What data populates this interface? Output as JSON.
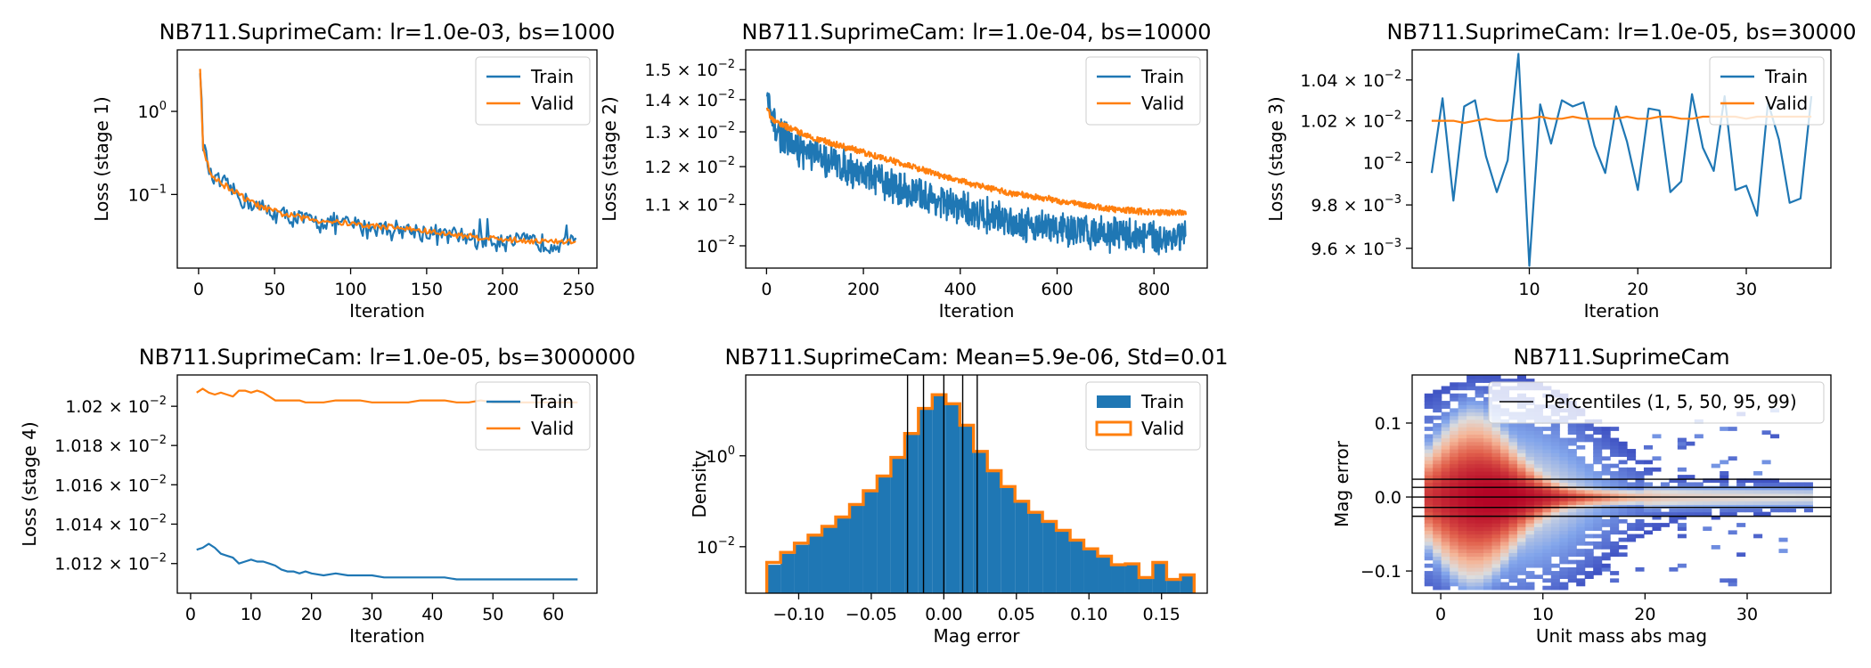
{
  "colors": {
    "train": "#1f77b4",
    "valid": "#ff7f0e",
    "percentile": "#000000"
  },
  "chart_data": [
    {
      "type": "line",
      "title": "NB711.SuprimeCam: lr=1.0e-03, bs=1000",
      "xlabel": "Iteration",
      "ylabel": "Loss (stage 1)",
      "yscale": "log",
      "xlim": [
        -14,
        262
      ],
      "ylim": [
        0.013,
        5.5
      ],
      "xticks": [
        0,
        50,
        100,
        150,
        200,
        250
      ],
      "yticks": [
        {
          "v": 1,
          "label": "10",
          "exp": "0"
        },
        {
          "v": 0.1,
          "label": "10",
          "exp": "−1"
        }
      ],
      "legend": [
        "Train",
        "Valid"
      ],
      "legend_position": "top-right",
      "series": [
        {
          "name": "Train",
          "x": [
            1,
            2,
            3,
            5,
            8,
            10,
            14,
            20,
            30,
            40,
            50,
            60,
            75,
            90,
            100,
            110,
            125,
            140,
            150,
            160,
            175,
            190,
            200,
            210,
            220,
            230,
            240,
            248
          ],
          "y": [
            3.8,
            1.2,
            0.42,
            0.27,
            0.17,
            0.15,
            0.14,
            0.12,
            0.086,
            0.07,
            0.06,
            0.054,
            0.048,
            0.046,
            0.044,
            0.041,
            0.04,
            0.037,
            0.035,
            0.033,
            0.031,
            0.029,
            0.028,
            0.027,
            0.027,
            0.026,
            0.026,
            0.025
          ],
          "noise": 0.32,
          "n": 248
        },
        {
          "name": "Valid",
          "x": [
            1,
            2,
            3,
            5,
            8,
            10,
            14,
            20,
            30,
            40,
            50,
            60,
            75,
            90,
            100,
            110,
            125,
            140,
            150,
            160,
            175,
            190,
            200,
            210,
            220,
            230,
            240,
            248
          ],
          "y": [
            3.3,
            1.1,
            0.4,
            0.26,
            0.18,
            0.16,
            0.14,
            0.12,
            0.09,
            0.072,
            0.062,
            0.056,
            0.05,
            0.047,
            0.045,
            0.042,
            0.041,
            0.038,
            0.036,
            0.034,
            0.032,
            0.03,
            0.029,
            0.028,
            0.028,
            0.027,
            0.027,
            0.027
          ],
          "noise": 0.1,
          "n": 248
        }
      ]
    },
    {
      "type": "line",
      "title": "NB711.SuprimeCam: lr=1.0e-04, bs=10000",
      "xlabel": "Iteration",
      "ylabel": "Loss (stage 2)",
      "yscale": "log",
      "xlim": [
        -43,
        910
      ],
      "ylim": [
        0.0095,
        0.0157
      ],
      "xticks": [
        0,
        200,
        400,
        600,
        800
      ],
      "yticks": [
        {
          "v": 0.015,
          "label": "1.5 × 10",
          "exp": "−2"
        },
        {
          "v": 0.014,
          "label": "1.4 × 10",
          "exp": "−2"
        },
        {
          "v": 0.013,
          "label": "1.3 × 10",
          "exp": "−2"
        },
        {
          "v": 0.012,
          "label": "1.2 × 10",
          "exp": "−2"
        },
        {
          "v": 0.011,
          "label": "1.1 × 10",
          "exp": "−2"
        },
        {
          "v": 0.01,
          "label": "10",
          "exp": "−2"
        }
      ],
      "legend": [
        "Train",
        "Valid"
      ],
      "legend_position": "top-right",
      "series": [
        {
          "name": "Train",
          "x": [
            1,
            10,
            20,
            50,
            100,
            200,
            300,
            400,
            500,
            600,
            700,
            800,
            866
          ],
          "y": [
            0.0141,
            0.0133,
            0.0131,
            0.0126,
            0.0123,
            0.0118,
            0.0113,
            0.0109,
            0.0106,
            0.0104,
            0.0103,
            0.0102,
            0.0102
          ],
          "noise": 0.045,
          "n": 866
        },
        {
          "name": "Valid",
          "x": [
            1,
            10,
            20,
            50,
            100,
            200,
            300,
            400,
            500,
            600,
            700,
            800,
            866
          ],
          "y": [
            0.0137,
            0.0134,
            0.0133,
            0.0131,
            0.0128,
            0.0124,
            0.012,
            0.0116,
            0.0113,
            0.0111,
            0.0109,
            0.0108,
            0.0108
          ],
          "noise": 0.008,
          "n": 866
        }
      ]
    },
    {
      "type": "line",
      "title": "NB711.SuprimeCam: lr=1.0e-05, bs=30000",
      "xlabel": "Iteration",
      "ylabel": "Loss (stage 3)",
      "yscale": "log",
      "xlim": [
        -0.8,
        37.8
      ],
      "ylim": [
        0.00951,
        0.01055
      ],
      "xticks": [
        10,
        20,
        30
      ],
      "yticks": [
        {
          "v": 0.0104,
          "label": "1.04 × 10",
          "exp": "−2"
        },
        {
          "v": 0.0102,
          "label": "1.02 × 10",
          "exp": "−2"
        },
        {
          "v": 0.01,
          "label": "10",
          "exp": "−2"
        },
        {
          "v": 0.0098,
          "label": "9.8 × 10",
          "exp": "−3"
        },
        {
          "v": 0.0096,
          "label": "9.6 × 10",
          "exp": "−3"
        }
      ],
      "legend": [
        "Train",
        "Valid"
      ],
      "legend_position": "top-right",
      "series": [
        {
          "name": "Train",
          "x": [
            1,
            2,
            3,
            4,
            5,
            6,
            7,
            8,
            9,
            10,
            11,
            12,
            13,
            14,
            15,
            16,
            17,
            18,
            19,
            20,
            21,
            22,
            23,
            24,
            25,
            26,
            27,
            28,
            29,
            30,
            31,
            32,
            33,
            34,
            35,
            36
          ],
          "y": [
            0.00995,
            0.01031,
            0.00982,
            0.01027,
            0.0103,
            0.01003,
            0.00986,
            0.01001,
            0.01053,
            0.00952,
            0.01028,
            0.01009,
            0.0103,
            0.01027,
            0.01029,
            0.01008,
            0.00995,
            0.01027,
            0.0101,
            0.00987,
            0.01026,
            0.01025,
            0.00986,
            0.00991,
            0.01033,
            0.01007,
            0.00996,
            0.01032,
            0.00987,
            0.00989,
            0.00975,
            0.01029,
            0.01011,
            0.00981,
            0.00983,
            0.01032
          ]
        },
        {
          "name": "Valid",
          "x": [
            1,
            2,
            3,
            4,
            5,
            6,
            7,
            8,
            9,
            10,
            11,
            12,
            13,
            14,
            15,
            16,
            17,
            18,
            19,
            20,
            21,
            22,
            23,
            24,
            25,
            26,
            27,
            28,
            29,
            30,
            31,
            32,
            33,
            34,
            35,
            36
          ],
          "y": [
            0.0102,
            0.0102,
            0.0102,
            0.01019,
            0.0102,
            0.01021,
            0.0102,
            0.0102,
            0.01021,
            0.01021,
            0.01022,
            0.01021,
            0.01021,
            0.01022,
            0.01021,
            0.01021,
            0.01021,
            0.01021,
            0.01022,
            0.01021,
            0.01021,
            0.01022,
            0.01022,
            0.01021,
            0.01021,
            0.01022,
            0.01022,
            0.01022,
            0.01022,
            0.01021,
            0.01022,
            0.01022,
            0.01022,
            0.01022,
            0.01022,
            0.01022
          ]
        }
      ]
    },
    {
      "type": "line",
      "title": "NB711.SuprimeCam: lr=1.0e-05, bs=3000000",
      "xlabel": "Iteration",
      "ylabel": "Loss (stage 4)",
      "yscale": "log",
      "xlim": [
        -2.2,
        67.2
      ],
      "ylim": [
        0.010105,
        0.010216
      ],
      "xticks": [
        0,
        10,
        20,
        30,
        40,
        50,
        60
      ],
      "yticks": [
        {
          "v": 0.0102,
          "label": "1.02 × 10",
          "exp": "−2"
        },
        {
          "v": 0.01018,
          "label": "1.018 × 10",
          "exp": "−2"
        },
        {
          "v": 0.01016,
          "label": "1.016 × 10",
          "exp": "−2"
        },
        {
          "v": 0.01014,
          "label": "1.014 × 10",
          "exp": "−2"
        },
        {
          "v": 0.01012,
          "label": "1.012 × 10",
          "exp": "−2"
        }
      ],
      "legend": [
        "Train",
        "Valid"
      ],
      "legend_position": "top-right",
      "series": [
        {
          "name": "Train",
          "x": [
            1,
            2,
            3,
            4,
            5,
            6,
            7,
            8,
            9,
            10,
            11,
            12,
            13,
            14,
            15,
            16,
            17,
            18,
            19,
            20,
            22,
            24,
            26,
            28,
            30,
            32,
            34,
            36,
            38,
            40,
            42,
            44,
            46,
            48,
            50,
            52,
            54,
            56,
            58,
            60,
            62,
            64
          ],
          "y": [
            0.010127,
            0.010128,
            0.01013,
            0.010128,
            0.010125,
            0.010124,
            0.010123,
            0.01012,
            0.010121,
            0.010122,
            0.010121,
            0.010121,
            0.01012,
            0.010119,
            0.010117,
            0.010116,
            0.010116,
            0.010115,
            0.010116,
            0.010115,
            0.010114,
            0.010115,
            0.010114,
            0.010114,
            0.010114,
            0.010113,
            0.010113,
            0.010113,
            0.010113,
            0.010113,
            0.010113,
            0.010112,
            0.010112,
            0.010112,
            0.010112,
            0.010112,
            0.010112,
            0.010112,
            0.010112,
            0.010112,
            0.010112,
            0.010112
          ]
        },
        {
          "name": "Valid",
          "x": [
            1,
            2,
            3,
            4,
            5,
            6,
            7,
            8,
            9,
            10,
            11,
            12,
            13,
            14,
            15,
            16,
            17,
            18,
            19,
            20,
            22,
            24,
            26,
            28,
            30,
            32,
            34,
            36,
            38,
            40,
            42,
            44,
            46,
            48,
            50,
            52,
            54,
            56,
            58,
            60,
            62,
            64
          ],
          "y": [
            0.010207,
            0.010209,
            0.010207,
            0.010206,
            0.010207,
            0.010206,
            0.010205,
            0.010208,
            0.010208,
            0.010207,
            0.010208,
            0.010207,
            0.010205,
            0.010203,
            0.010203,
            0.010203,
            0.010203,
            0.010203,
            0.010202,
            0.010202,
            0.010202,
            0.010203,
            0.010203,
            0.010203,
            0.010202,
            0.010202,
            0.010202,
            0.010202,
            0.010203,
            0.010203,
            0.010203,
            0.010202,
            0.010202,
            0.010203,
            0.010202,
            0.010202,
            0.010202,
            0.010202,
            0.010202,
            0.010202,
            0.010202,
            0.010202
          ]
        }
      ]
    },
    {
      "type": "histogram",
      "title": "NB711.SuprimeCam: Mean=5.9e-06, Std=0.01",
      "xlabel": "Mag error",
      "ylabel": "Density",
      "yscale": "log",
      "xlim": [
        -0.1365,
        0.1815
      ],
      "ylim": [
        0.00095,
        60
      ],
      "xticks": [
        -0.1,
        -0.05,
        0.0,
        0.05,
        0.1,
        0.15
      ],
      "xticklabels": [
        "−0.10",
        "−0.05",
        "0.00",
        "0.05",
        "0.10",
        "0.15"
      ],
      "yticks": [
        {
          "v": 1,
          "label": "10",
          "exp": "0"
        },
        {
          "v": 0.01,
          "label": "10",
          "exp": "−2"
        }
      ],
      "legend": [
        "Train",
        "Valid"
      ],
      "legend_position": "top-right",
      "bin_edges": [
        -0.122,
        -0.1125,
        -0.103,
        -0.0935,
        -0.084,
        -0.0745,
        -0.065,
        -0.0555,
        -0.046,
        -0.0365,
        -0.027,
        -0.0175,
        -0.008,
        0.0015,
        0.011,
        0.0205,
        0.03,
        0.0395,
        0.049,
        0.0585,
        0.068,
        0.0775,
        0.087,
        0.0965,
        0.106,
        0.1155,
        0.125,
        0.1345,
        0.144,
        0.1535,
        0.163,
        0.1725
      ],
      "train": [
        0.004,
        0.007,
        0.011,
        0.017,
        0.027,
        0.045,
        0.08,
        0.16,
        0.35,
        0.9,
        3.0,
        11,
        22,
        14,
        4.5,
        1.2,
        0.45,
        0.2,
        0.1,
        0.055,
        0.035,
        0.022,
        0.013,
        0.009,
        0.006,
        0.004,
        0.004,
        0.002,
        0.0045,
        0.0018,
        0.0025
      ],
      "valid": [
        0.0045,
        0.0075,
        0.012,
        0.018,
        0.028,
        0.045,
        0.085,
        0.17,
        0.36,
        0.92,
        3.1,
        11,
        22,
        14,
        4.7,
        1.25,
        0.47,
        0.21,
        0.1,
        0.057,
        0.036,
        0.023,
        0.014,
        0.009,
        0.0062,
        0.004,
        0.0042,
        0.0021,
        0.0045,
        0.0019,
        0.0024
      ],
      "percentiles": [
        -0.025,
        -0.014,
        0.0,
        0.013,
        0.023
      ]
    },
    {
      "type": "heatmap",
      "title": "NB711.SuprimeCam",
      "xlabel": "Unit mass abs mag",
      "ylabel": "Mag error",
      "xlim": [
        -2.8,
        38.2
      ],
      "ylim": [
        -0.13,
        0.165
      ],
      "xticks": [
        0,
        10,
        20,
        30
      ],
      "yticks": [
        0.1,
        0.0,
        -0.1
      ],
      "yticklabels": [
        "0.1",
        "0.0",
        "−0.1"
      ],
      "legend": [
        "Percentiles (1, 5, 50, 95, 99)"
      ],
      "legend_position": "top-right",
      "percentiles": [
        -0.026,
        -0.014,
        0.0,
        0.013,
        0.024
      ],
      "colormap": "RdBu_r log-density"
    }
  ]
}
